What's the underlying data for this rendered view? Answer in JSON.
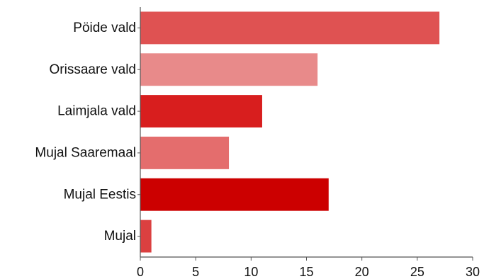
{
  "chart_data": {
    "type": "bar",
    "orientation": "horizontal",
    "title": "",
    "xlabel": "",
    "ylabel": "",
    "categories": [
      "Pöide vald",
      "Orissaare vald",
      "Laimjala vald",
      "Mujal Saaremaal",
      "Mujal Eestis",
      "Mujal"
    ],
    "values": [
      27,
      16,
      11,
      8,
      17,
      1
    ],
    "colors": [
      "#df5252",
      "#e88a8a",
      "#d81e1e",
      "#e46d6d",
      "#cc0000",
      "#db4040"
    ],
    "xlim": [
      0,
      30
    ],
    "xticks": [
      0,
      5,
      10,
      15,
      20,
      25,
      30
    ],
    "grid": false,
    "legend": "none"
  }
}
